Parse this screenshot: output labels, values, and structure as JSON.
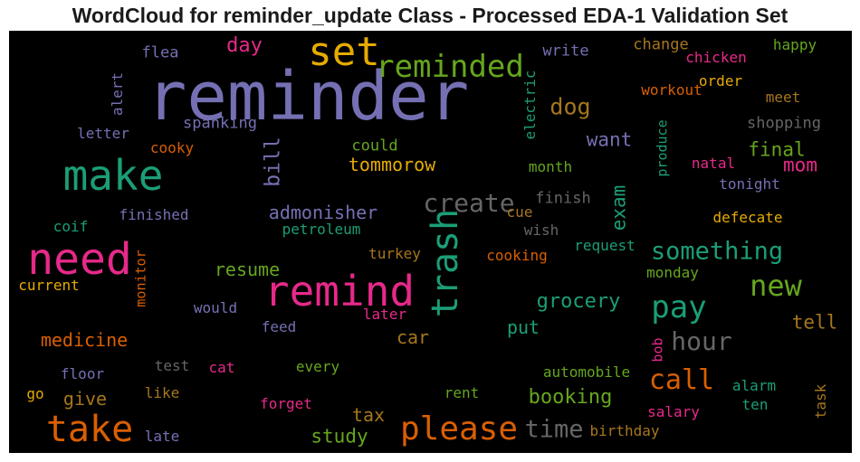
{
  "title": "WordCloud for reminder_update Class - Processed EDA-1 Validation Set",
  "colors": {
    "purple": "#7570b3",
    "orange": "#d95f02",
    "green": "#1b9e77",
    "pink": "#e7298a",
    "lime": "#66a61e",
    "gold": "#e6ab02",
    "brown": "#a6761d",
    "gray": "#666666"
  },
  "words": [
    {
      "text": "reminder",
      "color": "purple"
    },
    {
      "text": "set",
      "color": "gold"
    },
    {
      "text": "reminded",
      "color": "lime"
    },
    {
      "text": "make",
      "color": "green"
    },
    {
      "text": "need",
      "color": "pink"
    },
    {
      "text": "remind",
      "color": "pink"
    },
    {
      "text": "trash",
      "color": "green"
    },
    {
      "text": "take",
      "color": "orange"
    },
    {
      "text": "please",
      "color": "orange"
    },
    {
      "text": "create",
      "color": "gray"
    },
    {
      "text": "pay",
      "color": "green"
    },
    {
      "text": "new",
      "color": "lime"
    },
    {
      "text": "something",
      "color": "green"
    },
    {
      "text": "hour",
      "color": "gray"
    },
    {
      "text": "call",
      "color": "orange"
    },
    {
      "text": "time",
      "color": "gray"
    },
    {
      "text": "day",
      "color": "pink"
    },
    {
      "text": "dog",
      "color": "brown"
    },
    {
      "text": "bill",
      "color": "purple"
    },
    {
      "text": "exam",
      "color": "green"
    },
    {
      "text": "want",
      "color": "purple"
    },
    {
      "text": "final",
      "color": "lime"
    },
    {
      "text": "mom",
      "color": "pink"
    },
    {
      "text": "tommorow",
      "color": "gold"
    },
    {
      "text": "admonisher",
      "color": "purple"
    },
    {
      "text": "grocery",
      "color": "green"
    },
    {
      "text": "booking",
      "color": "lime"
    },
    {
      "text": "medicine",
      "color": "orange"
    },
    {
      "text": "resume",
      "color": "lime"
    },
    {
      "text": "car",
      "color": "brown"
    },
    {
      "text": "put",
      "color": "green"
    },
    {
      "text": "tell",
      "color": "brown"
    },
    {
      "text": "tax",
      "color": "brown"
    },
    {
      "text": "study",
      "color": "lime"
    },
    {
      "text": "give",
      "color": "brown"
    },
    {
      "text": "flea",
      "color": "purple"
    },
    {
      "text": "alert",
      "color": "purple"
    },
    {
      "text": "write",
      "color": "purple"
    },
    {
      "text": "change",
      "color": "brown"
    },
    {
      "text": "happy",
      "color": "lime"
    },
    {
      "text": "chicken",
      "color": "pink"
    },
    {
      "text": "electric",
      "color": "green"
    },
    {
      "text": "workout",
      "color": "orange"
    },
    {
      "text": "order",
      "color": "gold"
    },
    {
      "text": "meet",
      "color": "brown"
    },
    {
      "text": "spanking",
      "color": "purple"
    },
    {
      "text": "letter",
      "color": "purple"
    },
    {
      "text": "cooky",
      "color": "orange"
    },
    {
      "text": "could",
      "color": "lime"
    },
    {
      "text": "shopping",
      "color": "gray"
    },
    {
      "text": "produce",
      "color": "green"
    },
    {
      "text": "month",
      "color": "lime"
    },
    {
      "text": "natal",
      "color": "pink"
    },
    {
      "text": "tonight",
      "color": "purple"
    },
    {
      "text": "finish",
      "color": "gray"
    },
    {
      "text": "finished",
      "color": "purple"
    },
    {
      "text": "coif",
      "color": "green"
    },
    {
      "text": "cue",
      "color": "brown"
    },
    {
      "text": "defecate",
      "color": "gold"
    },
    {
      "text": "petroleum",
      "color": "green"
    },
    {
      "text": "wish",
      "color": "gray"
    },
    {
      "text": "request",
      "color": "green"
    },
    {
      "text": "turkey",
      "color": "brown"
    },
    {
      "text": "cooking",
      "color": "orange"
    },
    {
      "text": "monday",
      "color": "lime"
    },
    {
      "text": "current",
      "color": "gold"
    },
    {
      "text": "monitor",
      "color": "orange"
    },
    {
      "text": "would",
      "color": "purple"
    },
    {
      "text": "later",
      "color": "pink"
    },
    {
      "text": "feed",
      "color": "purple"
    },
    {
      "text": "bob",
      "color": "pink"
    },
    {
      "text": "test",
      "color": "gray"
    },
    {
      "text": "cat",
      "color": "pink"
    },
    {
      "text": "every",
      "color": "lime"
    },
    {
      "text": "floor",
      "color": "purple"
    },
    {
      "text": "automobile",
      "color": "lime"
    },
    {
      "text": "alarm",
      "color": "green"
    },
    {
      "text": "task",
      "color": "brown"
    },
    {
      "text": "go",
      "color": "gold"
    },
    {
      "text": "like",
      "color": "brown"
    },
    {
      "text": "forget",
      "color": "pink"
    },
    {
      "text": "rent",
      "color": "lime"
    },
    {
      "text": "ten",
      "color": "green"
    },
    {
      "text": "salary",
      "color": "pink"
    },
    {
      "text": "late",
      "color": "purple"
    },
    {
      "text": "birthday",
      "color": "brown"
    }
  ]
}
